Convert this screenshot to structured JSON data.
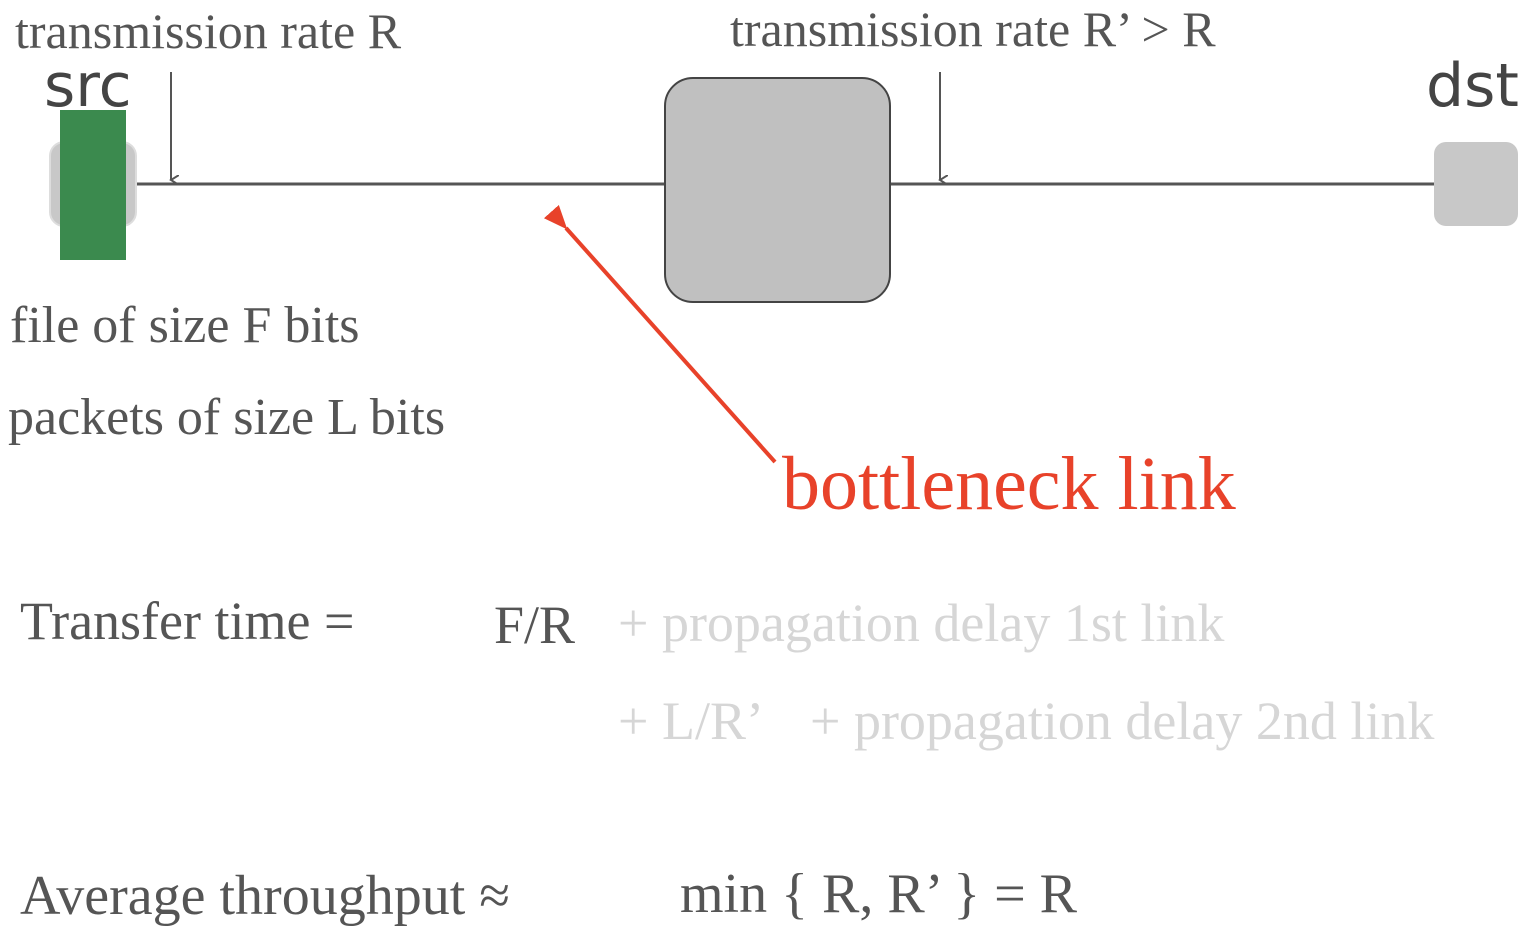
{
  "labels": {
    "rate_left": "transmission rate R",
    "rate_right": "transmission rate R’ > R",
    "src": "src",
    "dst": "dst",
    "file_size": "file of size F bits",
    "packet_size": "packets of size L bits",
    "bottleneck": "bottleneck link"
  },
  "transfer": {
    "label": "Transfer time =",
    "term_main": "F/R",
    "term_prop1": "+ propagation delay 1st link",
    "term_l_r": "+ L/R’",
    "term_prop2": "+ propagation delay 2nd link"
  },
  "throughput": {
    "label": "Average throughput ≈",
    "formula": "min { R, R’ } = R"
  },
  "colors": {
    "packet": "#3b8a4e",
    "node": "#c0c0c0",
    "host": "#c8c8c8",
    "link": "#555555",
    "bottleneck": "#e8422a",
    "faint_text": "#d6d6d6"
  }
}
